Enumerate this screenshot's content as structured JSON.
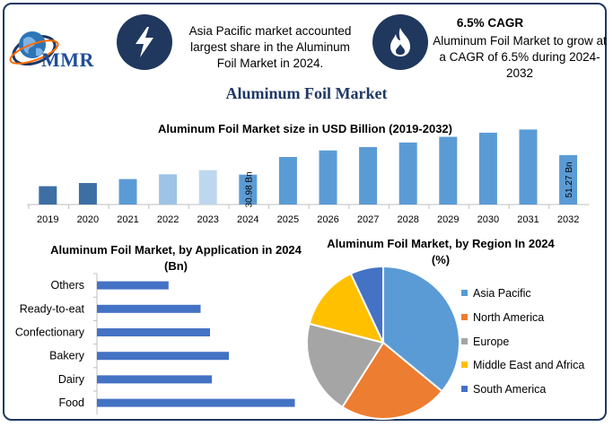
{
  "header": {
    "logo_text": "MMR",
    "highlight_1": "Asia Pacific market accounted largest share in the Aluminum Foil Market in 2024.",
    "cagr_title": "6.5% CAGR",
    "cagr_text": "Aluminum Foil Market to grow at a CAGR of 6.5% during 2024-2032",
    "icons": [
      "globe-logo-icon",
      "lightning-bolt-icon",
      "flame-icon"
    ]
  },
  "title": "Aluminum Foil Market",
  "colors": {
    "frame": "#1f3864",
    "icon_bg": "#20385e",
    "bar_main": "#5b9bd5",
    "bar_dark": "#3d6fa4",
    "bar_light": "#9dc3e6",
    "bar_lighter": "#bdd7ee",
    "hbar": "#4472c4"
  },
  "chart_data": [
    {
      "type": "bar",
      "title": "Aluminum Foil Market size in USD Billion (2019-2032)",
      "categories": [
        "2019",
        "2020",
        "2021",
        "2022",
        "2023",
        "2024",
        "2025",
        "2026",
        "2027",
        "2028",
        "2029",
        "2030",
        "2031",
        "2032"
      ],
      "values": [
        19.0,
        22.3,
        26.4,
        31.3,
        35.6,
        30.98,
        49.3,
        56.1,
        59.6,
        64.3,
        70.2,
        74.5,
        77.8,
        51.27
      ],
      "data_labels": {
        "5": "30.98 Bn",
        "13": "51.27 Bn"
      },
      "bar_colors": [
        "#3d6fa4",
        "#3d6fa4",
        "#5b9bd5",
        "#9dc3e6",
        "#bdd7ee",
        "#5b9bd5",
        "#5b9bd5",
        "#5b9bd5",
        "#5b9bd5",
        "#5b9bd5",
        "#5b9bd5",
        "#5b9bd5",
        "#5b9bd5",
        "#5b9bd5"
      ],
      "ylim": [
        0,
        80
      ],
      "grid": false
    },
    {
      "type": "bar",
      "orientation": "horizontal",
      "title": "Aluminum Foil Market, by Application in 2024 (Bn)",
      "categories": [
        "Others",
        "Ready-to-eat",
        "Confectionary",
        "Bakery",
        "Dairy",
        "Food"
      ],
      "values": [
        3.8,
        5.5,
        6.0,
        7.0,
        6.1,
        10.5
      ],
      "xlim": [
        0,
        12
      ],
      "grid": false
    },
    {
      "type": "pie",
      "title": "Aluminum Foil Market, by Region In 2024 (%)",
      "labels": [
        "Asia Pacific",
        "North America",
        "Europe",
        "Middle East and Africa",
        "South America"
      ],
      "values": [
        36,
        23,
        20,
        14,
        7
      ],
      "colors": [
        "#5b9bd5",
        "#ed7d31",
        "#a5a5a5",
        "#ffc000",
        "#4472c4"
      ],
      "legend": "right"
    }
  ]
}
